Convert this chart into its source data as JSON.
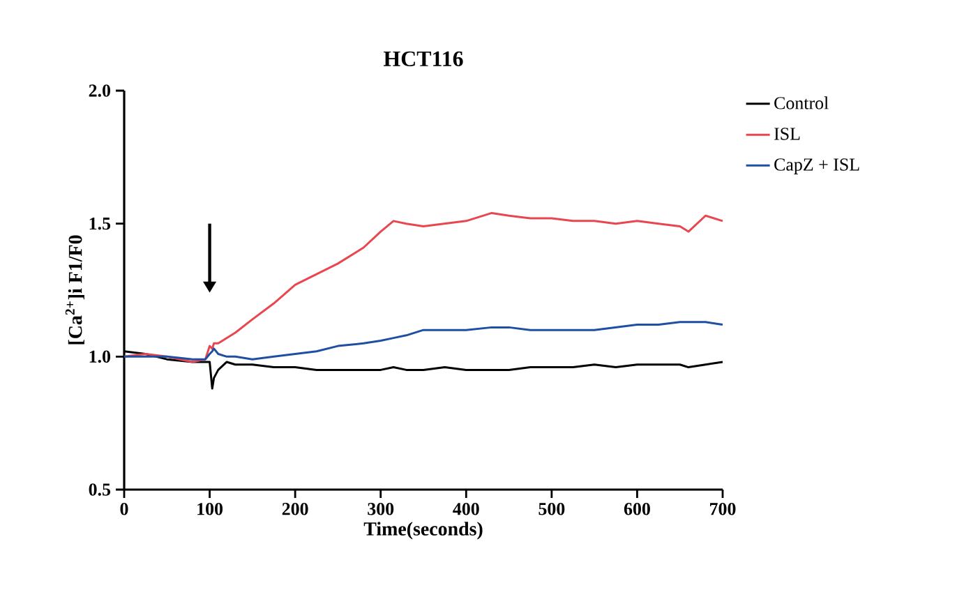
{
  "chart_data": {
    "type": "line",
    "title": "HCT116",
    "xlabel": "Time(seconds)",
    "ylabel": "[Ca$^{2+}$]i F1/F0",
    "xlim": [
      0,
      700
    ],
    "ylim": [
      0.5,
      2.0
    ],
    "xticks": [
      0,
      100,
      200,
      300,
      400,
      500,
      600,
      700
    ],
    "yticks": [
      0.5,
      {
        "value": 1.0,
        "label": "1.0"
      },
      1.5,
      {
        "value": 2.0,
        "label": "2.0"
      }
    ],
    "legend": "top right",
    "grid": false,
    "marker": "none",
    "line_style": "solid",
    "x": [
      0,
      25,
      50,
      80,
      95,
      100,
      103,
      105,
      110,
      120,
      130,
      150,
      175,
      200,
      225,
      250,
      280,
      300,
      315,
      330,
      350,
      375,
      400,
      430,
      450,
      475,
      500,
      525,
      550,
      575,
      600,
      625,
      650,
      660,
      680,
      700
    ],
    "series": [
      {
        "name": "Control",
        "color": "#000000",
        "values": [
          1.02,
          1.01,
          0.99,
          0.98,
          0.98,
          0.98,
          0.88,
          0.92,
          0.95,
          0.98,
          0.97,
          0.97,
          0.96,
          0.96,
          0.95,
          0.95,
          0.95,
          0.95,
          0.96,
          0.95,
          0.95,
          0.96,
          0.95,
          0.95,
          0.95,
          0.96,
          0.96,
          0.96,
          0.97,
          0.96,
          0.97,
          0.97,
          0.97,
          0.96,
          0.97,
          0.98
        ]
      },
      {
        "name": "ISL",
        "color": "#e8474f",
        "values": [
          1.0,
          1.01,
          1.0,
          0.98,
          0.99,
          1.04,
          1.03,
          1.05,
          1.05,
          1.07,
          1.09,
          1.14,
          1.2,
          1.27,
          1.31,
          1.35,
          1.41,
          1.47,
          1.51,
          1.5,
          1.49,
          1.5,
          1.51,
          1.54,
          1.53,
          1.52,
          1.52,
          1.51,
          1.51,
          1.5,
          1.51,
          1.5,
          1.49,
          1.47,
          1.53,
          1.51
        ]
      },
      {
        "name": "CapZ + ISL",
        "color": "#1f4fa3",
        "values": [
          1.0,
          1.0,
          1.0,
          0.99,
          0.99,
          1.01,
          1.02,
          1.03,
          1.01,
          1.0,
          1.0,
          0.99,
          1.0,
          1.01,
          1.02,
          1.04,
          1.05,
          1.06,
          1.07,
          1.08,
          1.1,
          1.1,
          1.1,
          1.11,
          1.11,
          1.1,
          1.1,
          1.1,
          1.1,
          1.11,
          1.12,
          1.12,
          1.13,
          1.13,
          1.13,
          1.12
        ]
      }
    ]
  }
}
